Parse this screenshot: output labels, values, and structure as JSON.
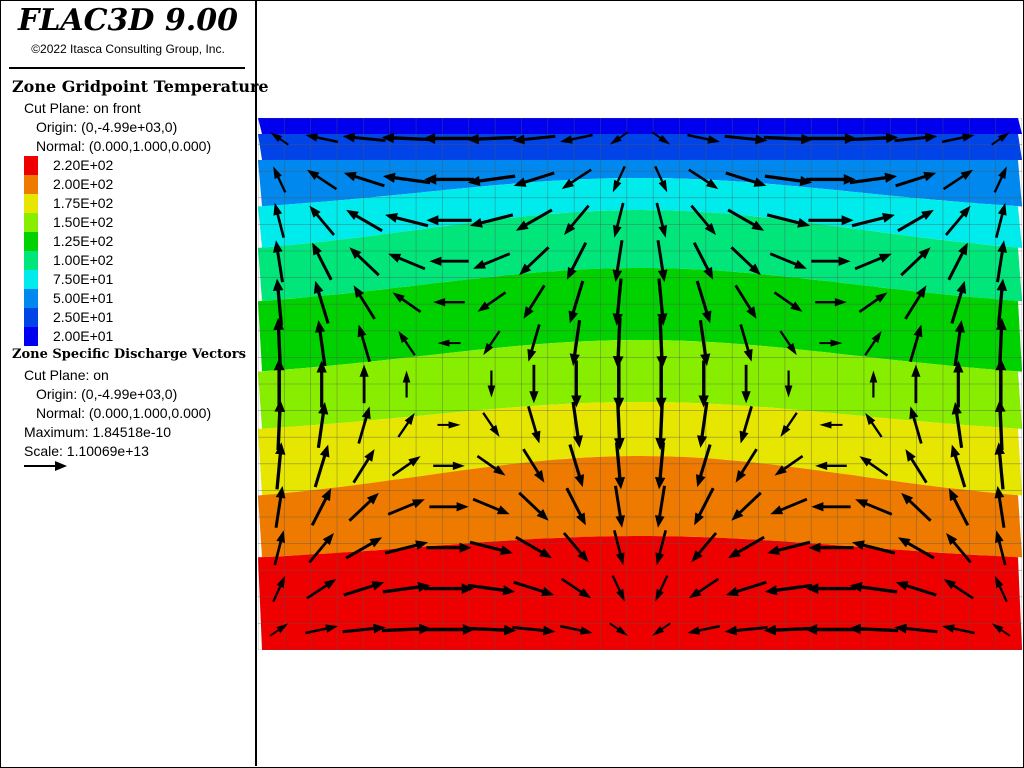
{
  "app": {
    "title": "FLAC3D 9.00",
    "copyright": "©2022 Itasca Consulting Group, Inc."
  },
  "contour_legend": {
    "heading": "Zone Gridpoint Temperature",
    "cut_plane": "Cut Plane: on front",
    "origin": "Origin: (0,-4.99e+03,0)",
    "normal": "Normal: (0.000,1.000,0.000)",
    "bands": [
      {
        "label": "2.20E+02",
        "color": "#ee0000"
      },
      {
        "label": "2.00E+02",
        "color": "#ee7a00"
      },
      {
        "label": "1.75E+02",
        "color": "#e6e600"
      },
      {
        "label": "1.50E+02",
        "color": "#88ee00"
      },
      {
        "label": "1.25E+02",
        "color": "#00d200"
      },
      {
        "label": "1.00E+02",
        "color": "#00e67a"
      },
      {
        "label": "7.50E+01",
        "color": "#00ecec"
      },
      {
        "label": "5.00E+01",
        "color": "#0088ee"
      },
      {
        "label": "2.50E+01",
        "color": "#0044e8"
      },
      {
        "label": "2.00E+01",
        "color": "#0000ee"
      }
    ]
  },
  "vector_legend": {
    "heading": "Zone Specific Discharge Vectors",
    "cut_plane": "Cut Plane: on",
    "origin": "Origin: (0,-4.99e+03,0)",
    "normal": "Normal: (0.000,1.000,0.000)",
    "maximum": "Maximum: 1.84518e-10",
    "scale": "Scale: 1.10069e+13"
  },
  "chart_data": {
    "type": "heatmap",
    "description_units": "temperature contour bands with discharge vector overlay",
    "bands_top_to_bottom": [
      "2.00E+01",
      "2.50E+01",
      "5.00E+01",
      "7.50E+01",
      "1.00E+02",
      "1.25E+02",
      "1.50E+02",
      "1.75E+02",
      "2.00E+02",
      "2.20E+02"
    ],
    "grid": true,
    "grid_columns": 29,
    "grid_rows": 20,
    "flow_pattern": "convection: strong upward flow at centre column, downward flow at side walls, horizontal flow toward centre along bottom and away along top"
  }
}
